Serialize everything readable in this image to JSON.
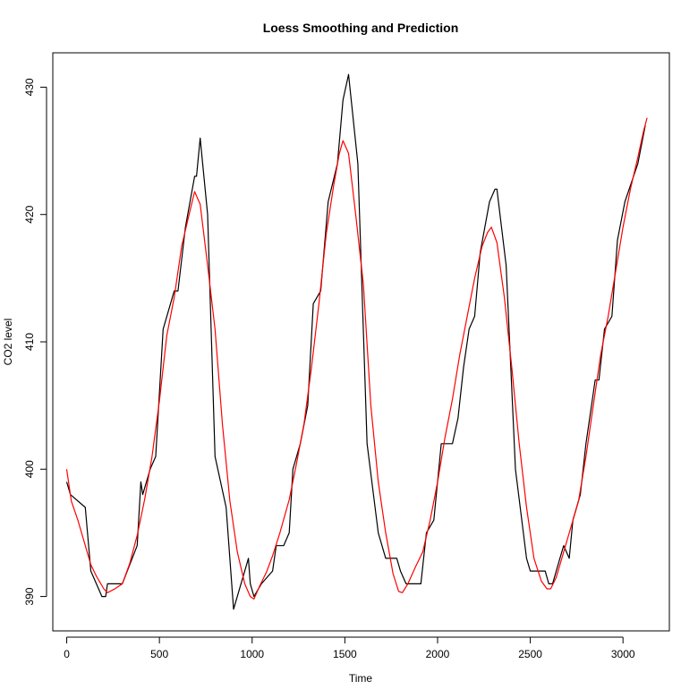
{
  "chart_data": {
    "type": "line",
    "title": "Loess Smoothing and Prediction",
    "xlabel": "Time",
    "ylabel": "CO2 level",
    "xlim": [
      -75,
      3250
    ],
    "ylim": [
      387.3,
      432.7
    ],
    "x_ticks": [
      0,
      500,
      1000,
      1500,
      2000,
      2500,
      3000
    ],
    "y_ticks": [
      390,
      400,
      410,
      420,
      430
    ],
    "grid": false,
    "legend": "none",
    "series": [
      {
        "color": "#000000",
        "points": [
          [
            0,
            399
          ],
          [
            20,
            398
          ],
          [
            100,
            397
          ],
          [
            130,
            392
          ],
          [
            190,
            390
          ],
          [
            210,
            390
          ],
          [
            220,
            391
          ],
          [
            300,
            391
          ],
          [
            380,
            394
          ],
          [
            400,
            399
          ],
          [
            410,
            398
          ],
          [
            450,
            400
          ],
          [
            480,
            401
          ],
          [
            520,
            411
          ],
          [
            580,
            414
          ],
          [
            600,
            414
          ],
          [
            640,
            419
          ],
          [
            690,
            423
          ],
          [
            700,
            423
          ],
          [
            720,
            426
          ],
          [
            760,
            420
          ],
          [
            800,
            401
          ],
          [
            860,
            397
          ],
          [
            900,
            389
          ],
          [
            960,
            392
          ],
          [
            980,
            393
          ],
          [
            990,
            391
          ],
          [
            1010,
            390
          ],
          [
            1050,
            391
          ],
          [
            1110,
            392
          ],
          [
            1130,
            394
          ],
          [
            1170,
            394
          ],
          [
            1200,
            395
          ],
          [
            1220,
            400
          ],
          [
            1260,
            402
          ],
          [
            1300,
            405
          ],
          [
            1330,
            413
          ],
          [
            1370,
            414
          ],
          [
            1410,
            421
          ],
          [
            1460,
            424
          ],
          [
            1490,
            429
          ],
          [
            1520,
            431
          ],
          [
            1570,
            424
          ],
          [
            1620,
            402
          ],
          [
            1680,
            395
          ],
          [
            1720,
            393
          ],
          [
            1780,
            393
          ],
          [
            1800,
            392
          ],
          [
            1830,
            391
          ],
          [
            1880,
            391
          ],
          [
            1910,
            391
          ],
          [
            1940,
            395
          ],
          [
            1980,
            396
          ],
          [
            2020,
            402
          ],
          [
            2040,
            402
          ],
          [
            2060,
            402
          ],
          [
            2080,
            402
          ],
          [
            2110,
            404
          ],
          [
            2140,
            408
          ],
          [
            2170,
            411
          ],
          [
            2200,
            412
          ],
          [
            2230,
            417
          ],
          [
            2280,
            421
          ],
          [
            2310,
            422
          ],
          [
            2320,
            422
          ],
          [
            2370,
            416
          ],
          [
            2420,
            400
          ],
          [
            2480,
            393
          ],
          [
            2500,
            392
          ],
          [
            2550,
            392
          ],
          [
            2580,
            392
          ],
          [
            2600,
            391
          ],
          [
            2620,
            391
          ],
          [
            2660,
            393
          ],
          [
            2680,
            394
          ],
          [
            2710,
            393
          ],
          [
            2730,
            396
          ],
          [
            2770,
            398
          ],
          [
            2800,
            402
          ],
          [
            2850,
            407
          ],
          [
            2870,
            407
          ],
          [
            2900,
            411
          ],
          [
            2940,
            412
          ],
          [
            2970,
            418
          ],
          [
            3010,
            421
          ],
          [
            3080,
            424
          ],
          [
            3120,
            427
          ]
        ]
      },
      {
        "color": "#ff0000",
        "points": [
          [
            0,
            400
          ],
          [
            25,
            397.5
          ],
          [
            60,
            396
          ],
          [
            100,
            394
          ],
          [
            130,
            392.5
          ],
          [
            160,
            391.6
          ],
          [
            200,
            390.6
          ],
          [
            220,
            390.3
          ],
          [
            260,
            390.6
          ],
          [
            300,
            391
          ],
          [
            340,
            392.6
          ],
          [
            380,
            394.8
          ],
          [
            420,
            397.6
          ],
          [
            460,
            401
          ],
          [
            500,
            405.4
          ],
          [
            540,
            410.5
          ],
          [
            580,
            413.5
          ],
          [
            620,
            417.5
          ],
          [
            660,
            420
          ],
          [
            690,
            421.8
          ],
          [
            720,
            420.8
          ],
          [
            760,
            416
          ],
          [
            800,
            411
          ],
          [
            840,
            403.5
          ],
          [
            880,
            397.5
          ],
          [
            920,
            393.5
          ],
          [
            960,
            391
          ],
          [
            990,
            390
          ],
          [
            1010,
            389.8
          ],
          [
            1040,
            390.8
          ],
          [
            1080,
            392
          ],
          [
            1110,
            393.2
          ],
          [
            1150,
            395
          ],
          [
            1200,
            397.6
          ],
          [
            1240,
            400.5
          ],
          [
            1280,
            403.6
          ],
          [
            1320,
            408
          ],
          [
            1360,
            413
          ],
          [
            1400,
            418.5
          ],
          [
            1440,
            422.3
          ],
          [
            1470,
            424.8
          ],
          [
            1490,
            425.8
          ],
          [
            1520,
            424.8
          ],
          [
            1560,
            419.8
          ],
          [
            1600,
            414.5
          ],
          [
            1640,
            405
          ],
          [
            1680,
            399
          ],
          [
            1720,
            395
          ],
          [
            1760,
            391.8
          ],
          [
            1790,
            390.4
          ],
          [
            1810,
            390.3
          ],
          [
            1840,
            391
          ],
          [
            1880,
            392.3
          ],
          [
            1920,
            393.5
          ],
          [
            1960,
            396
          ],
          [
            2000,
            399
          ],
          [
            2040,
            402.5
          ],
          [
            2080,
            405.5
          ],
          [
            2120,
            409
          ],
          [
            2160,
            412
          ],
          [
            2200,
            415
          ],
          [
            2240,
            417.5
          ],
          [
            2270,
            418.6
          ],
          [
            2290,
            419
          ],
          [
            2320,
            417.8
          ],
          [
            2360,
            413.5
          ],
          [
            2400,
            408
          ],
          [
            2440,
            402
          ],
          [
            2480,
            397
          ],
          [
            2520,
            393
          ],
          [
            2560,
            391.2
          ],
          [
            2590,
            390.6
          ],
          [
            2610,
            390.6
          ],
          [
            2640,
            391.5
          ],
          [
            2680,
            393.5
          ],
          [
            2720,
            395.5
          ],
          [
            2760,
            397.5
          ],
          [
            2800,
            401
          ],
          [
            2840,
            405
          ],
          [
            2880,
            409
          ],
          [
            2920,
            412
          ],
          [
            2960,
            415.5
          ],
          [
            3000,
            419
          ],
          [
            3040,
            422
          ],
          [
            3080,
            424.5
          ],
          [
            3110,
            426.5
          ],
          [
            3130,
            427.6
          ]
        ]
      }
    ]
  }
}
